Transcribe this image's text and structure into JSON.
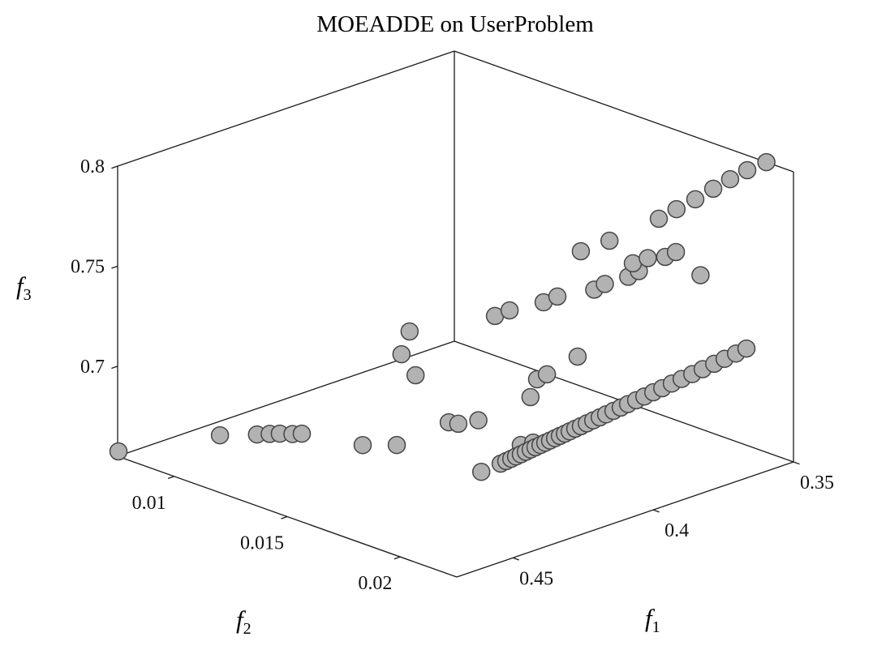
{
  "chart_data": {
    "type": "scatter",
    "subtype": "scatter3d-orthographic",
    "title": "MOEADDE on UserProblem",
    "axis_labels": {
      "x": {
        "base": "f",
        "sub": "1"
      },
      "y": {
        "base": "f",
        "sub": "2"
      },
      "z": {
        "base": "f",
        "sub": "3"
      }
    },
    "xlim": [
      0.35,
      0.47
    ],
    "ylim": [
      0.0075,
      0.0225
    ],
    "zlim": [
      0.655,
      0.8
    ],
    "xticks": [
      0.45,
      0.4,
      0.35
    ],
    "yticks": [
      0.01,
      0.015,
      0.02
    ],
    "zticks": [
      0.7,
      0.75,
      0.8
    ],
    "grid": false,
    "legend": false,
    "axis_color": "#1a1a1a",
    "marker": {
      "fill": "#b2b2b2",
      "stroke": "#464646",
      "radius_px": 10.5,
      "stroke_width": 1.5
    },
    "points": [
      [
        0.4697,
        0.0075,
        0.6573
      ],
      [
        0.4553,
        0.0102,
        0.6693
      ],
      [
        0.4469,
        0.0108,
        0.6681
      ],
      [
        0.444,
        0.011,
        0.6678
      ],
      [
        0.4412,
        0.0111,
        0.667
      ],
      [
        0.4383,
        0.0113,
        0.6662
      ],
      [
        0.4358,
        0.0114,
        0.6656
      ],
      [
        0.4286,
        0.0132,
        0.6637
      ],
      [
        0.4237,
        0.0141,
        0.665
      ],
      [
        0.4221,
        0.0162,
        0.684
      ],
      [
        0.4211,
        0.0165,
        0.684
      ],
      [
        0.418,
        0.017,
        0.6863
      ],
      [
        0.4288,
        0.0153,
        0.729
      ],
      [
        0.4317,
        0.0153,
        0.719
      ],
      [
        0.4291,
        0.0156,
        0.7085
      ],
      [
        0.4099,
        0.0183,
        0.6992
      ],
      [
        0.4051,
        0.018,
        0.7046
      ],
      [
        0.4016,
        0.018,
        0.7054
      ],
      [
        0.3931,
        0.0183,
        0.7114
      ],
      [
        0.4532,
        0.0215,
        0.6955
      ],
      [
        0.423,
        0.0195,
        0.6864
      ],
      [
        0.4186,
        0.0195,
        0.6855
      ],
      [
        0.4463,
        0.0215,
        0.6963
      ],
      [
        0.4443,
        0.0215,
        0.6966
      ],
      [
        0.4425,
        0.0215,
        0.6969
      ],
      [
        0.4408,
        0.0215,
        0.6972
      ],
      [
        0.4391,
        0.0215,
        0.6975
      ],
      [
        0.4373,
        0.0215,
        0.6979
      ],
      [
        0.4356,
        0.0215,
        0.6982
      ],
      [
        0.4339,
        0.0215,
        0.6985
      ],
      [
        0.4321,
        0.0215,
        0.6988
      ],
      [
        0.4304,
        0.0215,
        0.6991
      ],
      [
        0.4287,
        0.0215,
        0.6994
      ],
      [
        0.4269,
        0.0215,
        0.6997
      ],
      [
        0.4252,
        0.0215,
        0.7
      ],
      [
        0.4234,
        0.0215,
        0.7003
      ],
      [
        0.4217,
        0.0215,
        0.7006
      ],
      [
        0.4197,
        0.0215,
        0.701
      ],
      [
        0.4177,
        0.0215,
        0.7013
      ],
      [
        0.4156,
        0.0215,
        0.7017
      ],
      [
        0.4133,
        0.0215,
        0.7021
      ],
      [
        0.411,
        0.0215,
        0.7025
      ],
      [
        0.4087,
        0.0215,
        0.7029
      ],
      [
        0.4061,
        0.0215,
        0.7034
      ],
      [
        0.4035,
        0.0215,
        0.7038
      ],
      [
        0.4009,
        0.0215,
        0.7043
      ],
      [
        0.398,
        0.0215,
        0.7048
      ],
      [
        0.3951,
        0.0215,
        0.7053
      ],
      [
        0.3919,
        0.0215,
        0.7059
      ],
      [
        0.3887,
        0.0215,
        0.7064
      ],
      [
        0.3853,
        0.0215,
        0.7071
      ],
      [
        0.3818,
        0.0215,
        0.7077
      ],
      [
        0.378,
        0.0215,
        0.7083
      ],
      [
        0.3743,
        0.0215,
        0.709
      ],
      [
        0.3702,
        0.0215,
        0.7097
      ],
      [
        0.3665,
        0.0215,
        0.7104
      ],
      [
        0.3624,
        0.0215,
        0.7111
      ],
      [
        0.3587,
        0.0215,
        0.7118
      ],
      [
        0.4173,
        0.0198,
        0.7562
      ],
      [
        0.4124,
        0.0198,
        0.7567
      ],
      [
        0.4033,
        0.0203,
        0.7578
      ],
      [
        0.3995,
        0.0203,
        0.7588
      ],
      [
        0.3936,
        0.0206,
        0.7608
      ],
      [
        0.3898,
        0.0206,
        0.7618
      ],
      [
        0.3879,
        0.0201,
        0.7628
      ],
      [
        0.3842,
        0.0203,
        0.7644
      ],
      [
        0.3812,
        0.0207,
        0.7652
      ],
      [
        0.3774,
        0.0207,
        0.7658
      ],
      [
        0.3775,
        0.0218,
        0.7587
      ],
      [
        0.3992,
        0.0192,
        0.7706
      ],
      [
        0.389,
        0.0192,
        0.771
      ],
      [
        0.4443,
        0.021,
        0.7671
      ],
      [
        0.4391,
        0.021,
        0.7674
      ],
      [
        0.3859,
        0.021,
        0.7877
      ],
      [
        0.3796,
        0.021,
        0.7895
      ],
      [
        0.3729,
        0.021,
        0.7912
      ],
      [
        0.3665,
        0.021,
        0.7934
      ],
      [
        0.3605,
        0.021,
        0.7953
      ],
      [
        0.3544,
        0.021,
        0.7969
      ],
      [
        0.35,
        0.0213,
        0.8
      ]
    ]
  }
}
